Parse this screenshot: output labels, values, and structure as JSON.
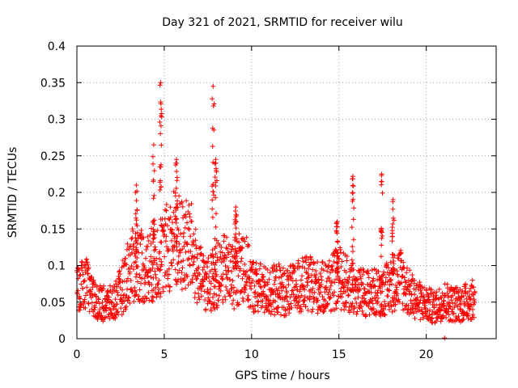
{
  "chart_data": {
    "type": "scatter",
    "title": "Day 321 of 2021, SRMTID for receiver wilu",
    "xlabel": "GPS time / hours",
    "ylabel": "SRMTID / TECUs",
    "xlim": [
      0,
      24
    ],
    "ylim": [
      0,
      0.4
    ],
    "xticks": [
      0,
      5,
      10,
      15,
      20
    ],
    "xtick_labels": [
      "0",
      "5",
      "10",
      "15",
      "20"
    ],
    "yticks": [
      0,
      0.05,
      0.1,
      0.15,
      0.2,
      0.25,
      0.3,
      0.35,
      0.4
    ],
    "ytick_labels": [
      "0",
      "0.05",
      "0.1",
      "0.15",
      "0.2",
      "0.25",
      "0.3",
      "0.35",
      "0.4"
    ],
    "grid": true,
    "marker": "+",
    "marker_color": "#ff0000",
    "series_trend": {
      "name": "SRMTID",
      "x": [
        0,
        0.5,
        1,
        1.5,
        2,
        2.5,
        3,
        3.5,
        4,
        4.5,
        5,
        5.5,
        6,
        6.5,
        7,
        7.5,
        8,
        8.5,
        9,
        9.5,
        10,
        10.5,
        11,
        11.5,
        12,
        12.5,
        13,
        13.5,
        14,
        14.5,
        15,
        15.5,
        16,
        16.5,
        17,
        17.5,
        18,
        18.5,
        19,
        19.5,
        20,
        20.5,
        21,
        21.5,
        22,
        22.5,
        22.8
      ],
      "y": [
        0.06,
        0.07,
        0.05,
        0.045,
        0.045,
        0.06,
        0.09,
        0.1,
        0.09,
        0.1,
        0.11,
        0.13,
        0.12,
        0.12,
        0.08,
        0.07,
        0.08,
        0.09,
        0.08,
        0.1,
        0.07,
        0.065,
        0.06,
        0.065,
        0.06,
        0.065,
        0.07,
        0.07,
        0.065,
        0.07,
        0.08,
        0.07,
        0.06,
        0.06,
        0.06,
        0.06,
        0.07,
        0.08,
        0.06,
        0.05,
        0.045,
        0.04,
        0.05,
        0.045,
        0.045,
        0.05,
        0.05
      ]
    },
    "spikes": [
      {
        "x": 4.4,
        "peak": 0.265
      },
      {
        "x": 4.8,
        "peak": 0.35
      },
      {
        "x": 5.7,
        "peak": 0.245
      },
      {
        "x": 7.8,
        "peak": 0.345
      },
      {
        "x": 7.95,
        "peak": 0.245
      },
      {
        "x": 15.8,
        "peak": 0.222
      },
      {
        "x": 17.45,
        "peak": 0.225
      },
      {
        "x": 18.1,
        "peak": 0.19
      },
      {
        "x": 3.4,
        "peak": 0.21
      },
      {
        "x": 9.1,
        "peak": 0.18
      },
      {
        "x": 14.9,
        "peak": 0.16
      },
      {
        "x": 21.05,
        "peak": 0.0
      }
    ]
  }
}
